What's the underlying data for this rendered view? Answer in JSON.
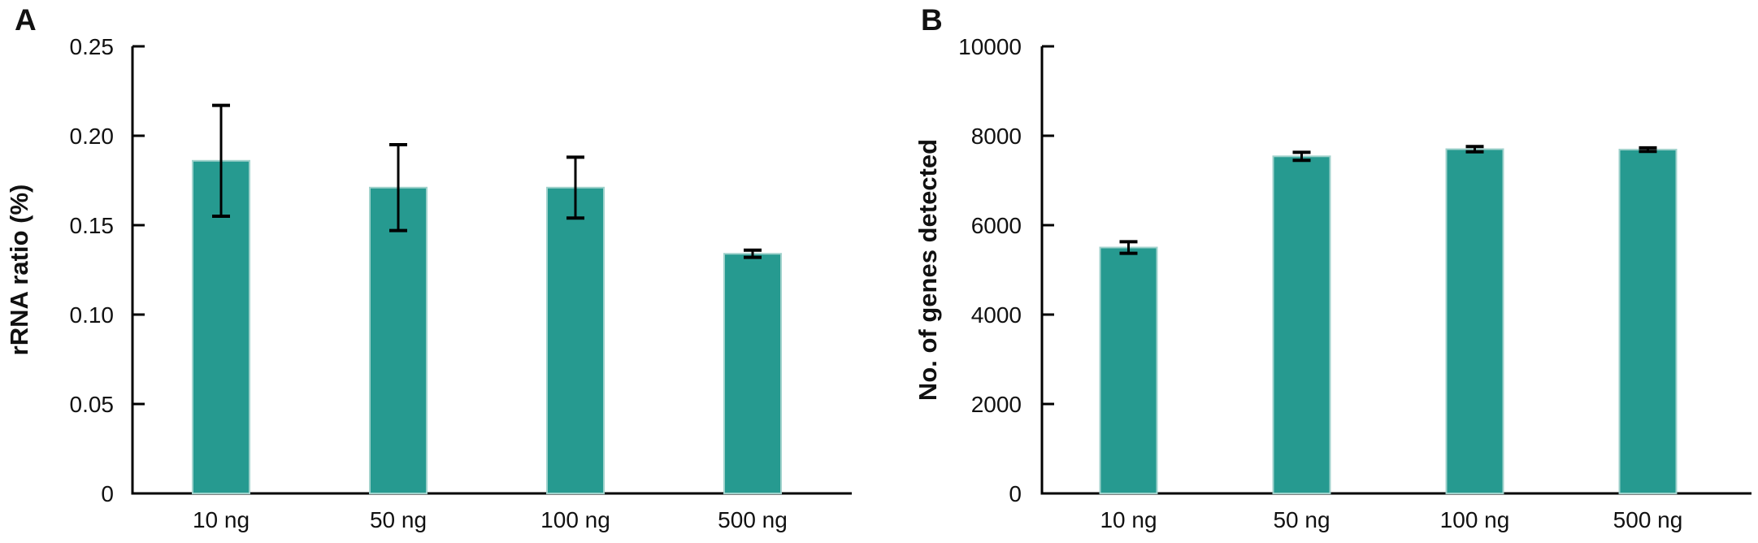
{
  "figure": {
    "background": "#ffffff",
    "bar_color": "#269a90",
    "bar_border_color": "#a0d2cc",
    "axis_color": "#000000",
    "error_bar_color": "#000000",
    "text_color": "#111111"
  },
  "panels": [
    {
      "label": "A"
    },
    {
      "label": "B"
    }
  ],
  "chart_data": [
    {
      "type": "bar",
      "title": "",
      "xlabel": "",
      "ylabel": "rRNA ratio (%)",
      "categories": [
        "10 ng",
        "50 ng",
        "100 ng",
        "500 ng"
      ],
      "values": [
        0.186,
        0.171,
        0.171,
        0.134
      ],
      "error_bars": [
        0.031,
        0.024,
        0.017,
        0.002
      ],
      "ylim": [
        0,
        0.25
      ],
      "yticks": [
        0,
        0.05,
        0.1,
        0.15,
        0.2,
        0.25
      ],
      "ytick_labels": [
        "0",
        "0.05",
        "0.10",
        "0.15",
        "0.20",
        "0.25"
      ],
      "grid": false,
      "legend": null
    },
    {
      "type": "bar",
      "title": "",
      "xlabel": "",
      "ylabel": "No. of genes detected",
      "categories": [
        "10 ng",
        "50 ng",
        "100 ng",
        "500 ng"
      ],
      "values": [
        5500,
        7540,
        7700,
        7690
      ],
      "error_bars": [
        130,
        90,
        60,
        40
      ],
      "ylim": [
        0,
        10000
      ],
      "yticks": [
        0,
        2000,
        4000,
        6000,
        8000,
        10000
      ],
      "ytick_labels": [
        "0",
        "2000",
        "4000",
        "6000",
        "8000",
        "10000"
      ],
      "grid": false,
      "legend": null
    }
  ]
}
